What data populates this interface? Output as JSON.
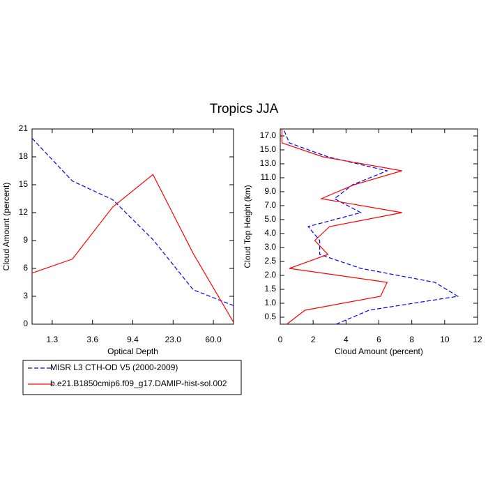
{
  "title": "Tropics JJA",
  "chart_data": [
    {
      "type": "line",
      "xlabel": "Optical Depth",
      "ylabel": "Cloud Amount (percent)",
      "x": [
        0,
        1,
        2,
        3,
        4,
        5
      ],
      "xlim": [
        0,
        5
      ],
      "xticks": [
        {
          "value": 0.5,
          "label": "1.3"
        },
        {
          "value": 1.5,
          "label": "3.6"
        },
        {
          "value": 2.5,
          "label": "9.4"
        },
        {
          "value": 3.5,
          "label": "23.0"
        },
        {
          "value": 4.5,
          "label": "60.0"
        }
      ],
      "ylim": [
        0,
        21
      ],
      "yticks": [
        0,
        3,
        6,
        9,
        12,
        15,
        18,
        21
      ],
      "series": [
        {
          "name": "MISR L3 CTH-OD V5 (2000-2009)",
          "color": "#0000ff",
          "dash": true,
          "values": [
            20,
            15.4,
            13.4,
            9.1,
            3.7,
            2
          ]
        },
        {
          "name": "b.e21.B1850cmip6.f09_g17.DAMIP-hist-sol.002",
          "color": "#ff0000",
          "dash": false,
          "values": [
            5.5,
            7.0,
            12.6,
            16.1,
            7.6,
            0.2
          ]
        }
      ]
    },
    {
      "type": "hline",
      "xlabel": "Cloud Amount (percent)",
      "ylabel": "Cloud Top Height (km)",
      "y": [
        0,
        1,
        2,
        3,
        4,
        5,
        6,
        7,
        8,
        9,
        10,
        11,
        12,
        13,
        14
      ],
      "ylim": [
        0,
        14
      ],
      "yticks": [
        {
          "value": 0.5,
          "label": "0.5"
        },
        {
          "value": 1.5,
          "label": "1.0"
        },
        {
          "value": 2.5,
          "label": "1.5"
        },
        {
          "value": 3.5,
          "label": "2.0"
        },
        {
          "value": 4.5,
          "label": "2.5"
        },
        {
          "value": 5.5,
          "label": "3.0"
        },
        {
          "value": 6.5,
          "label": "4.0"
        },
        {
          "value": 7.5,
          "label": "5.0"
        },
        {
          "value": 8.5,
          "label": "7.0"
        },
        {
          "value": 9.5,
          "label": "9.0"
        },
        {
          "value": 10.5,
          "label": "11.0"
        },
        {
          "value": 11.5,
          "label": "13.0"
        },
        {
          "value": 12.5,
          "label": "15.0"
        },
        {
          "value": 13.5,
          "label": "17.0"
        }
      ],
      "xlim": [
        0,
        12
      ],
      "xticks": [
        0,
        2,
        4,
        6,
        8,
        10,
        12
      ],
      "series": [
        {
          "color": "#0000ff",
          "dash": true,
          "values": [
            3.4,
            5.4,
            10.8,
            9.4,
            4.9,
            2.4,
            2.4,
            1.7,
            4.9,
            3.3,
            4.4,
            6.5,
            2.9,
            0.55,
            0.2
          ]
        },
        {
          "color": "#ff0000",
          "dash": false,
          "values": [
            0.4,
            1.5,
            6.1,
            6.5,
            0.55,
            2.9,
            2.1,
            3.0,
            7.4,
            2.5,
            4.5,
            7.4,
            2.6,
            0.1,
            0.1
          ]
        }
      ]
    }
  ]
}
